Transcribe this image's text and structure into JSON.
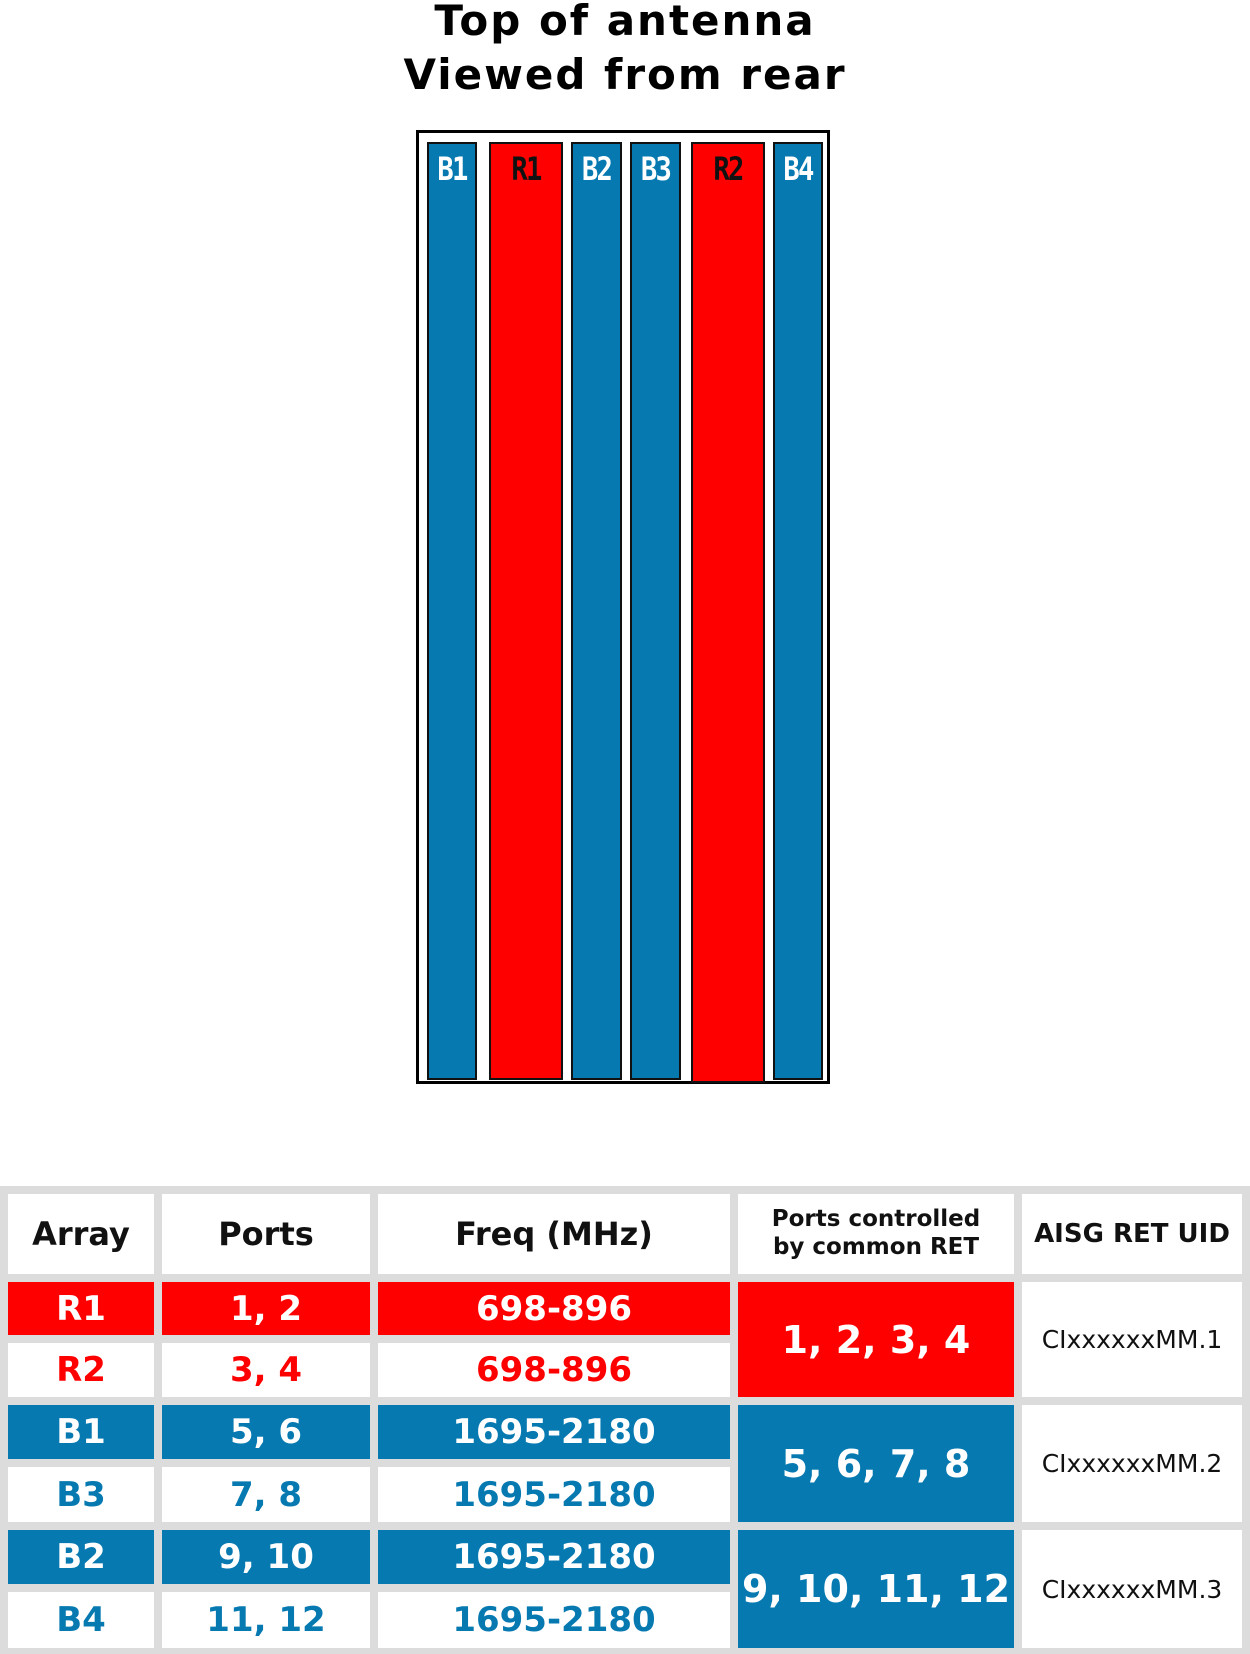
{
  "title": {
    "line1": "Top of antenna",
    "line2": "Viewed from rear"
  },
  "antenna": {
    "columns": [
      {
        "label": "B1",
        "color": "blue"
      },
      {
        "label": "R1",
        "color": "red"
      },
      {
        "label": "B2",
        "color": "blue"
      },
      {
        "label": "B3",
        "color": "blue"
      },
      {
        "label": "R2",
        "color": "red"
      },
      {
        "label": "B4",
        "color": "blue"
      }
    ]
  },
  "colors": {
    "blue": "#0679b1",
    "red": "#ff0000",
    "grid": "#dcdcdc"
  },
  "table": {
    "headers": {
      "array": "Array",
      "ports": "Ports",
      "freq": "Freq (MHz)",
      "ret_line1": "Ports controlled",
      "ret_line2": "by common RET",
      "uid": "AISG RET UID"
    },
    "rows": [
      {
        "array": "R1",
        "ports": "1, 2",
        "freq": "698-896"
      },
      {
        "array": "R2",
        "ports": "3, 4",
        "freq": "698-896"
      },
      {
        "array": "B1",
        "ports": "5, 6",
        "freq": "1695-2180"
      },
      {
        "array": "B3",
        "ports": "7, 8",
        "freq": "1695-2180"
      },
      {
        "array": "B2",
        "ports": "9, 10",
        "freq": "1695-2180"
      },
      {
        "array": "B4",
        "ports": "11, 12",
        "freq": "1695-2180"
      }
    ],
    "groups": [
      {
        "ret_ports": "1, 2, 3, 4",
        "uid": "CIxxxxxxMM.1"
      },
      {
        "ret_ports": "5, 6, 7, 8",
        "uid": "CIxxxxxxMM.2"
      },
      {
        "ret_ports": "9, 10, 11, 12",
        "uid": "CIxxxxxxMM.3"
      }
    ]
  }
}
